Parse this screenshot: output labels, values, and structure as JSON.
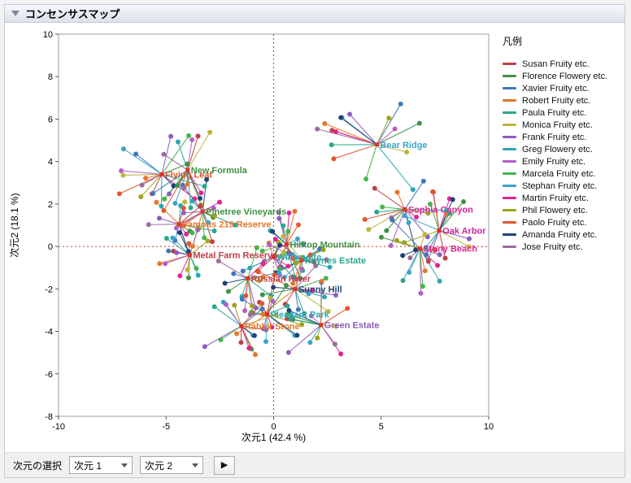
{
  "window": {
    "title": "コンセンサスマップ"
  },
  "legend": {
    "title": "凡例"
  },
  "controls": {
    "label": "次元の選択",
    "dim1_value": "次元 1",
    "dim2_value": "次元 2",
    "run_icon": "▶"
  },
  "chart_data": {
    "type": "scatter",
    "title": "コンセンサスマップ",
    "xlabel": "次元1 (42.4 %)",
    "ylabel": "次元2 (18.1 %)",
    "xlim": [
      -10,
      10
    ],
    "ylim": [
      -8,
      10
    ],
    "xticks": [
      -10,
      -5,
      0,
      5,
      10
    ],
    "yticks": [
      -8,
      -6,
      -4,
      -2,
      0,
      2,
      4,
      6,
      8,
      10
    ],
    "grid": false,
    "legend_position": "right",
    "reference_lines": {
      "x": 0,
      "y": 0,
      "style": "dashed",
      "color": "#BE3A3A"
    },
    "center_marker_color": "#E03127",
    "assessors": [
      {
        "name": "Susan Fruity etc.",
        "color": "#C04048"
      },
      {
        "name": "Florence Flowery etc.",
        "color": "#3E9144"
      },
      {
        "name": "Xavier Fruity etc.",
        "color": "#4077BE"
      },
      {
        "name": "Robert Fruity etc.",
        "color": "#E6762A"
      },
      {
        "name": "Paula Fruity etc.",
        "color": "#2BA68E"
      },
      {
        "name": "Monica Fruity etc.",
        "color": "#BCB53A"
      },
      {
        "name": "Frank Fruity etc.",
        "color": "#8E5BBF"
      },
      {
        "name": "Greg Flowery etc.",
        "color": "#2AA7B4"
      },
      {
        "name": "Emily Fruity etc.",
        "color": "#B45FC9"
      },
      {
        "name": "Marcela Fruity etc.",
        "color": "#44B54C"
      },
      {
        "name": "Stephan Fruity etc.",
        "color": "#3BA3C9"
      },
      {
        "name": "Martin Fruity etc.",
        "color": "#E02490"
      },
      {
        "name": "Phil Flowery etc.",
        "color": "#9FA31E"
      },
      {
        "name": "Paolo Fruity etc.",
        "color": "#E2562B"
      },
      {
        "name": "Amanda Fruity etc.",
        "color": "#1F4273"
      },
      {
        "name": "Jose Fruity etc.",
        "color": "#9B6B9E"
      }
    ],
    "products": [
      {
        "name": "Flying Leaf",
        "x": -5.2,
        "y": 3.4,
        "label_color": "#D4552A",
        "spread": 2.3
      },
      {
        "name": "New Formula",
        "x": -4.0,
        "y": 3.6,
        "label_color": "#3E9144",
        "spread": 2.2
      },
      {
        "name": "Pinetree Vineyards",
        "x": -3.3,
        "y": 1.65,
        "label_color": "#3E9144",
        "spread": 1.8
      },
      {
        "name": "Famous 219 Reserve",
        "x": -4.4,
        "y": 1.05,
        "label_color": "#E6762A",
        "spread": 1.7
      },
      {
        "name": "Metal Farm Reserve",
        "x": -3.9,
        "y": -0.4,
        "label_color": "#C04048",
        "spread": 1.7
      },
      {
        "name": "Bear Ridge",
        "x": 4.8,
        "y": 4.8,
        "label_color": "#3BA3C9",
        "spread": 2.8
      },
      {
        "name": "Sophia Canyon",
        "x": 6.1,
        "y": 1.75,
        "label_color": "#E02490",
        "spread": 1.9
      },
      {
        "name": "Oak Arbor",
        "x": 7.7,
        "y": 0.75,
        "label_color": "#C9259E",
        "spread": 1.8
      },
      {
        "name": "Stony Beach",
        "x": 6.8,
        "y": -0.1,
        "label_color": "#E02490",
        "spread": 2.1
      },
      {
        "name": "Hilltop Mountain",
        "x": 0.6,
        "y": 0.1,
        "label_color": "#3E9144",
        "spread": 1.8
      },
      {
        "name": "Willamette",
        "x": 0.0,
        "y": -0.5,
        "label_color": "#2AA7B4",
        "spread": 1.5
      },
      {
        "name": "Haynes Estate",
        "x": 1.3,
        "y": -0.65,
        "label_color": "#2BA68E",
        "spread": 1.6
      },
      {
        "name": "Russian River",
        "x": -1.2,
        "y": -1.5,
        "label_color": "#C04048",
        "spread": 1.6
      },
      {
        "name": "Sunny Hill",
        "x": 1.0,
        "y": -2.0,
        "label_color": "#1F4273",
        "spread": 1.9
      },
      {
        "name": "Pleasant Park",
        "x": -0.3,
        "y": -3.2,
        "label_color": "#2AA7B4",
        "spread": 1.8
      },
      {
        "name": "Rabbit Stone",
        "x": -1.5,
        "y": -3.75,
        "label_color": "#E6762A",
        "spread": 1.9
      },
      {
        "name": "Green Estate",
        "x": 2.2,
        "y": -3.7,
        "label_color": "#8E5BBF",
        "spread": 2.0
      }
    ]
  }
}
